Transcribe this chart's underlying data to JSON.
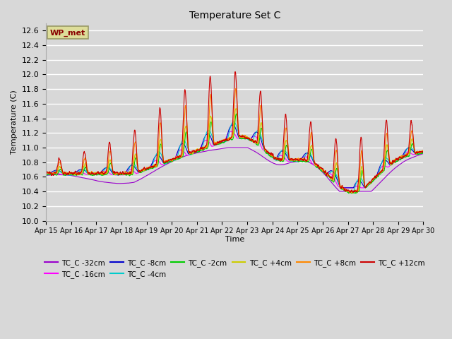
{
  "title": "Temperature Set C",
  "xlabel": "Time",
  "ylabel": "Temperature (C)",
  "ylim": [
    10.0,
    12.7
  ],
  "yticks": [
    10.0,
    10.2,
    10.4,
    10.6,
    10.8,
    11.0,
    11.2,
    11.4,
    11.6,
    11.8,
    12.0,
    12.2,
    12.4,
    12.6
  ],
  "background_color": "#d8d8d8",
  "plot_bg_color": "#d8d8d8",
  "grid_color": "#ffffff",
  "series": [
    {
      "label": "TC_C -32cm",
      "color": "#9900cc"
    },
    {
      "label": "TC_C -16cm",
      "color": "#ff00ff"
    },
    {
      "label": "TC_C -8cm",
      "color": "#0000cc"
    },
    {
      "label": "TC_C -4cm",
      "color": "#00cccc"
    },
    {
      "label": "TC_C -2cm",
      "color": "#00cc00"
    },
    {
      "label": "TC_C +4cm",
      "color": "#cccc00"
    },
    {
      "label": "TC_C +8cm",
      "color": "#ff8800"
    },
    {
      "label": "TC_C +12cm",
      "color": "#cc0000"
    }
  ],
  "wp_met_box_color": "#dddd99",
  "wp_met_text_color": "#880000",
  "n_days": 15,
  "start_day": 15
}
